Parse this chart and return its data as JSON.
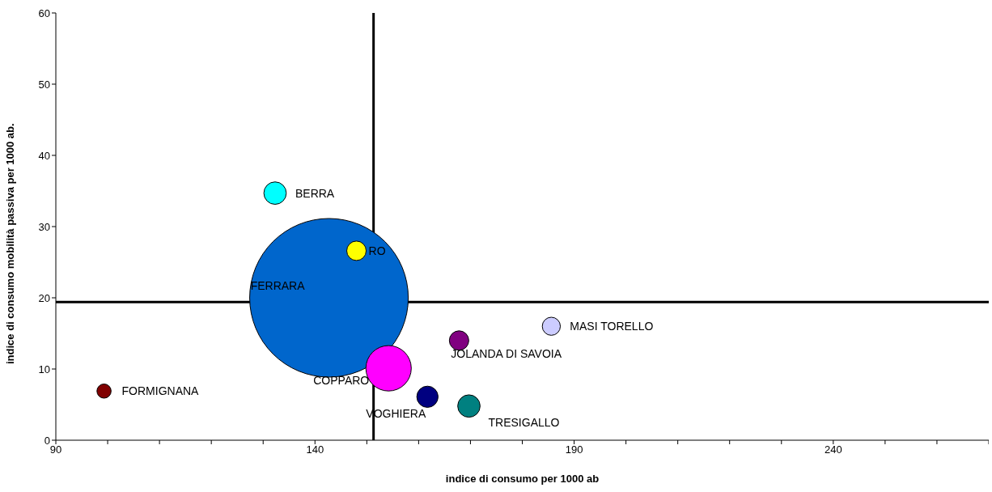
{
  "chart_data": {
    "type": "bubble",
    "xlabel": "indice di consumo per 1000 ab",
    "ylabel": "indice di consumo mobilità passiva per 1000 ab.",
    "xlim": [
      90,
      270
    ],
    "xticks": [
      90,
      {
        "value": 100,
        "label": null
      },
      {
        "value": 110,
        "label": null
      },
      {
        "value": 120,
        "label": null
      },
      {
        "value": 130,
        "label": null
      },
      140,
      {
        "value": 150,
        "label": null
      },
      {
        "value": 160,
        "label": null
      },
      {
        "value": 170,
        "label": null
      },
      {
        "value": 180,
        "label": null
      },
      190,
      {
        "value": 200,
        "label": null
      },
      {
        "value": 210,
        "label": null
      },
      {
        "value": 220,
        "label": null
      },
      {
        "value": 230,
        "label": null
      },
      240,
      {
        "value": 250,
        "label": null
      },
      {
        "value": 260,
        "label": null
      },
      {
        "value": 270,
        "label": null
      }
    ],
    "ylim": [
      0,
      60
    ],
    "yticks": [
      0,
      10,
      20,
      30,
      40,
      50,
      60
    ],
    "grid": false,
    "legend": false,
    "ref_lines": [
      {
        "axis": "x",
        "value": 151.3,
        "color": "#000000"
      },
      {
        "axis": "y",
        "value": 19.4,
        "color": "#000000"
      }
    ],
    "series": [
      {
        "name": "FERRARA",
        "color": "#0066cc",
        "x": [
          142.7
        ],
        "values": [
          20.0
        ],
        "sizes": [
          1
        ]
      },
      {
        "name": "BERRA",
        "color": "#00ffff",
        "x": [
          132.3
        ],
        "values": [
          34.7
        ],
        "sizes": [
          0.02
        ]
      },
      {
        "name": "RO",
        "color": "#ffff00",
        "x": [
          148.0
        ],
        "values": [
          26.6
        ],
        "sizes": [
          0.015
        ]
      },
      {
        "name": "COPPARO",
        "color": "#ff00ff",
        "x": [
          154.2
        ],
        "values": [
          10.1
        ],
        "sizes": [
          0.082
        ]
      },
      {
        "name": "JOLANDA DI SAVOIA",
        "color": "#800080",
        "x": [
          167.8
        ],
        "values": [
          14.0
        ],
        "sizes": [
          0.015
        ]
      },
      {
        "name": "MASI TORELLO",
        "color": "#ccccff",
        "x": [
          185.6
        ],
        "values": [
          16.0
        ],
        "sizes": [
          0.013
        ]
      },
      {
        "name": "VOGHIERA",
        "color": "#000080",
        "x": [
          161.7
        ],
        "values": [
          6.1
        ],
        "sizes": [
          0.018
        ]
      },
      {
        "name": "TRESIGALLO",
        "color": "#008080",
        "x": [
          169.7
        ],
        "values": [
          4.8
        ],
        "sizes": [
          0.02
        ]
      },
      {
        "name": "FORMIGNANA",
        "color": "#800000",
        "x": [
          99.3
        ],
        "values": [
          6.9
        ],
        "sizes": [
          0.008
        ]
      }
    ]
  }
}
